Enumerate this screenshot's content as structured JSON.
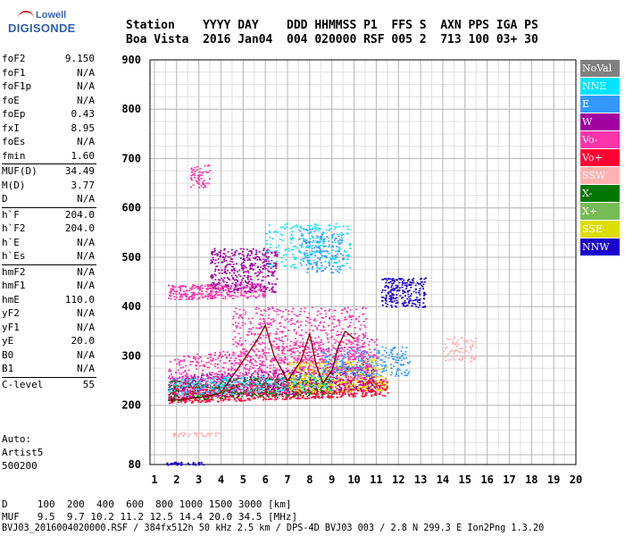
{
  "logo": {
    "small": "Lowell",
    "big": "DIGISONDE"
  },
  "header": {
    "labels": "Station    YYYY DAY    DDD HHMMSS P1  FFS S  AXN PPS IGA PS",
    "values": "Boa Vista  2016 Jan04  004 020000 RSF 005 2  713 100 03+ 30"
  },
  "params": [
    {
      "label": "foF2",
      "value": "9.150"
    },
    {
      "label": "foF1",
      "value": "N/A"
    },
    {
      "label": "foF1p",
      "value": "N/A"
    },
    {
      "label": "foE",
      "value": "N/A"
    },
    {
      "label": "foEp",
      "value": "0.43"
    },
    {
      "label": "fxI",
      "value": "8.95"
    },
    {
      "label": "foEs",
      "value": "N/A"
    },
    {
      "label": "fmin",
      "value": "1.60",
      "sep_after": true
    },
    {
      "label": "MUF(D)",
      "value": "34.49"
    },
    {
      "label": "M(D)",
      "value": "3.77"
    },
    {
      "label": "D",
      "value": "N/A",
      "sep_after": true
    },
    {
      "label": "h`F",
      "value": "204.0"
    },
    {
      "label": "h`F2",
      "value": "204.0"
    },
    {
      "label": "h`E",
      "value": "N/A"
    },
    {
      "label": "h`Es",
      "value": "N/A",
      "sep_after": true
    },
    {
      "label": "hmF2",
      "value": "N/A"
    },
    {
      "label": "hmF1",
      "value": "N/A"
    },
    {
      "label": "hmE",
      "value": "110.0"
    },
    {
      "label": "yF2",
      "value": "N/A"
    },
    {
      "label": "yF1",
      "value": "N/A"
    },
    {
      "label": "yE",
      "value": "20.0"
    },
    {
      "label": "B0",
      "value": "N/A"
    },
    {
      "label": "B1",
      "value": "N/A",
      "sep_after": true
    },
    {
      "label": "C-level",
      "value": "55",
      "sep_after": true
    }
  ],
  "auto": {
    "line1": "Auto:",
    "line2": "Artist5",
    "line3": "500200"
  },
  "bottom": {
    "d_row": "D     100  200  400  600  800 1000 1500 3000 [km]",
    "muf_row": "MUF   9.5  9.7 10.2 11.2 12.5 14.4 20.0 34.5 [MHz]",
    "footer": "BVJ03_2016004020000.RSF / 384fx512h 50 kHz 2.5 km / DPS-4D BVJ03 003 / 2.8 N 299.3 E Ion2Png 1.3.20"
  },
  "legend": [
    {
      "label": "NoVal",
      "color": "#808080"
    },
    {
      "label": "NNE",
      "color": "#00e5ff"
    },
    {
      "label": "E",
      "color": "#3399ff"
    },
    {
      "label": "W",
      "color": "#a000a0"
    },
    {
      "label": "Vo-",
      "color": "#ff33aa"
    },
    {
      "label": "Vo+",
      "color": "#ff0033"
    },
    {
      "label": "SSW",
      "color": "#ffb0b0"
    },
    {
      "label": "X-",
      "color": "#007700"
    },
    {
      "label": "X+",
      "color": "#77bb55"
    },
    {
      "label": "SSE",
      "color": "#dddd00"
    },
    {
      "label": "NNW",
      "color": "#1a00cc"
    }
  ],
  "chart_data": {
    "type": "scatter",
    "xlim": [
      0.8,
      20
    ],
    "ylim": [
      80,
      900
    ],
    "x_ticks": [
      1,
      2,
      3,
      4,
      5,
      6,
      7,
      8,
      9,
      10,
      11,
      12,
      13,
      14,
      15,
      16,
      17,
      18,
      19,
      20
    ],
    "y_ticks": [
      80,
      200,
      300,
      400,
      500,
      600,
      700,
      800,
      900
    ],
    "grid": true,
    "clusters": [
      {
        "color": "#ff0033",
        "x": [
          1.6,
          11.5
        ],
        "y": [
          205,
          240
        ],
        "slope": 0.09,
        "n": 900
      },
      {
        "color": "#a000a0",
        "x": [
          1.6,
          11.0
        ],
        "y": [
          210,
          260
        ],
        "slope": 0.1,
        "n": 700
      },
      {
        "color": "#ff33aa",
        "x": [
          1.6,
          11.0
        ],
        "y": [
          215,
          300
        ],
        "slope": 0.1,
        "n": 800
      },
      {
        "color": "#007700",
        "x": [
          1.6,
          9.0
        ],
        "y": [
          210,
          250
        ],
        "slope": 0.08,
        "n": 300
      },
      {
        "color": "#00e5ff",
        "x": [
          1.6,
          9.0
        ],
        "y": [
          220,
          255
        ],
        "slope": 0.08,
        "n": 250
      },
      {
        "color": "#dddd00",
        "x": [
          7.0,
          11.5
        ],
        "y": [
          225,
          290
        ],
        "slope": 0.04,
        "n": 350
      },
      {
        "color": "#3399ff",
        "x": [
          8.5,
          12.5
        ],
        "y": [
          260,
          320
        ],
        "slope": 0.0,
        "n": 250
      },
      {
        "color": "#ff33aa",
        "x": [
          4.5,
          10.5
        ],
        "y": [
          270,
          400
        ],
        "slope": 0.0,
        "n": 600
      },
      {
        "color": "#ff33aa",
        "x": [
          1.6,
          6.0
        ],
        "y": [
          415,
          445
        ],
        "slope": 0.05,
        "n": 300
      },
      {
        "color": "#a000a0",
        "x": [
          3.5,
          6.5
        ],
        "y": [
          430,
          520
        ],
        "slope": 0.0,
        "n": 400
      },
      {
        "color": "#3399ff",
        "x": [
          7.5,
          9.5
        ],
        "y": [
          470,
          560
        ],
        "slope": 0.0,
        "n": 200
      },
      {
        "color": "#00e5ff",
        "x": [
          6.0,
          9.8
        ],
        "y": [
          480,
          570
        ],
        "slope": 0.0,
        "n": 200
      },
      {
        "color": "#1a00cc",
        "x": [
          11.2,
          13.2
        ],
        "y": [
          400,
          460
        ],
        "slope": 0.0,
        "n": 220
      },
      {
        "color": "#ffb0b0",
        "x": [
          14.0,
          15.5
        ],
        "y": [
          290,
          340
        ],
        "slope": 0.0,
        "n": 80
      },
      {
        "color": "#ff33aa",
        "x": [
          2.6,
          3.5
        ],
        "y": [
          640,
          690
        ],
        "slope": 0.0,
        "n": 60
      },
      {
        "color": "#ffb0b0",
        "x": [
          1.8,
          4.0
        ],
        "y": [
          138,
          146
        ],
        "slope": 0.0,
        "n": 40
      },
      {
        "color": "#1a00cc",
        "x": [
          1.5,
          3.2
        ],
        "y": [
          80,
          86
        ],
        "slope": 0.0,
        "n": 40
      }
    ],
    "profile": {
      "color": "#800000",
      "x": [
        1.6,
        3.0,
        4.0,
        5.0,
        5.6,
        6.0,
        6.4,
        7.0,
        7.6,
        8.0,
        8.3,
        8.6,
        9.0,
        9.3,
        9.6,
        10.0
      ],
      "y": [
        210,
        215,
        225,
        290,
        330,
        362,
        300,
        250,
        290,
        345,
        280,
        245,
        270,
        320,
        350,
        335
      ]
    }
  }
}
